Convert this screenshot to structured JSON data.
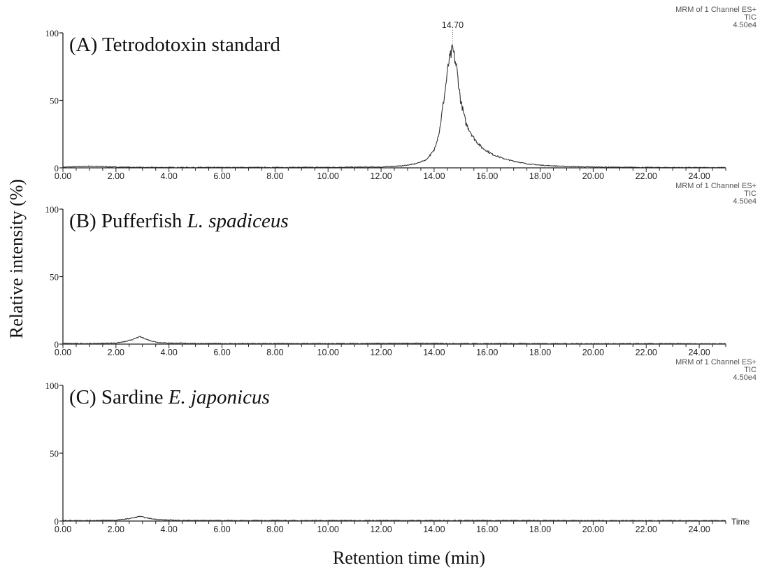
{
  "figure": {
    "ylabel": "Relative intensity (%)",
    "xlabel": "Retention time (min)",
    "axis_end_label": "Time"
  },
  "chart_data": [
    {
      "type": "line",
      "panel_title": "(A) Tetrodotoxin standard",
      "title_parts": [
        {
          "text": "(A) Tetrodotoxin standard",
          "italic": false
        }
      ],
      "header": [
        "MRM of 1 Channel ES+",
        "TIC",
        "4.50e4"
      ],
      "peak_label": "14.70",
      "peak_x": 14.7,
      "xlim": [
        0,
        25
      ],
      "ylim": [
        0,
        100
      ],
      "x_ticks": [
        "0.00",
        "2.00",
        "4.00",
        "6.00",
        "8.00",
        "10.00",
        "12.00",
        "14.00",
        "16.00",
        "18.00",
        "20.00",
        "22.00",
        "24.00"
      ],
      "y_ticks": [
        "0",
        "50",
        "100"
      ],
      "series": [
        {
          "x": [
            0,
            1,
            2,
            3,
            4,
            6,
            8,
            10,
            12,
            12.8,
            13.3,
            13.7,
            14.0,
            14.2,
            14.4,
            14.55,
            14.7,
            14.85,
            15.0,
            15.2,
            15.5,
            15.8,
            16.2,
            16.6,
            17.0,
            17.5,
            18.0,
            19.0,
            20.0,
            22.0,
            24.0,
            25.0
          ],
          "y": [
            0.5,
            1.2,
            0.6,
            0.3,
            0.3,
            0.3,
            0.3,
            0.4,
            0.6,
            1.5,
            3,
            6,
            13,
            27,
            55,
            78,
            88,
            74,
            50,
            33,
            22,
            15,
            10,
            7,
            5,
            3,
            2,
            1,
            0.6,
            0.3,
            0.2,
            0.2
          ]
        }
      ]
    },
    {
      "type": "line",
      "panel_title": "(B) Pufferfish L. spadiceus",
      "title_parts": [
        {
          "text": "(B) Pufferfish ",
          "italic": false
        },
        {
          "text": "L. spadiceus",
          "italic": true
        }
      ],
      "header": [
        "MRM of 1 Channel ES+",
        "TIC",
        "4.50e4"
      ],
      "xlim": [
        0,
        25
      ],
      "ylim": [
        0,
        100
      ],
      "x_ticks": [
        "0.00",
        "2.00",
        "4.00",
        "6.00",
        "8.00",
        "10.00",
        "12.00",
        "14.00",
        "16.00",
        "18.00",
        "20.00",
        "22.00",
        "24.00"
      ],
      "y_ticks": [
        "0",
        "50",
        "100"
      ],
      "series": [
        {
          "x": [
            0,
            1,
            2,
            2.4,
            2.7,
            2.9,
            3.1,
            3.3,
            3.6,
            4.0,
            5,
            6,
            8,
            10,
            12,
            13.5,
            14,
            16,
            18,
            20,
            22,
            24,
            25
          ],
          "y": [
            0.5,
            0.4,
            0.8,
            2,
            4,
            5.5,
            4,
            2.5,
            1.2,
            0.8,
            0.5,
            0.4,
            0.4,
            0.4,
            0.5,
            0.6,
            0.5,
            0.4,
            0.4,
            0.3,
            0.3,
            0.3,
            0.3
          ]
        }
      ]
    },
    {
      "type": "line",
      "panel_title": "(C) Sardine E. japonicus",
      "title_parts": [
        {
          "text": "(C) Sardine ",
          "italic": false
        },
        {
          "text": "E. japonicus",
          "italic": true
        }
      ],
      "header": [
        "MRM of 1 Channel ES+",
        "TIC",
        "4.50e4"
      ],
      "xlim": [
        0,
        25
      ],
      "ylim": [
        0,
        100
      ],
      "x_ticks": [
        "0.00",
        "2.00",
        "4.00",
        "6.00",
        "8.00",
        "10.00",
        "12.00",
        "14.00",
        "16.00",
        "18.00",
        "20.00",
        "22.00",
        "24.00"
      ],
      "y_ticks": [
        "0",
        "50",
        "100"
      ],
      "series": [
        {
          "x": [
            0,
            1,
            2,
            2.4,
            2.7,
            2.9,
            3.1,
            3.4,
            3.8,
            4.5,
            6,
            8,
            10,
            12,
            14,
            16,
            18,
            20,
            22,
            24,
            25
          ],
          "y": [
            0.4,
            0.4,
            0.6,
            1.5,
            2.5,
            3.5,
            2.5,
            1.5,
            0.8,
            0.5,
            0.4,
            0.4,
            0.4,
            0.4,
            0.4,
            0.4,
            0.4,
            0.3,
            0.3,
            0.3,
            0.3
          ]
        }
      ]
    }
  ]
}
